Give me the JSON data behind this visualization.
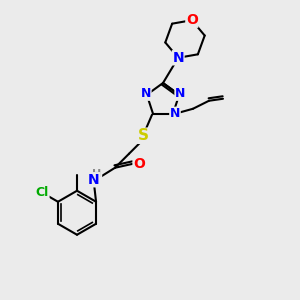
{
  "bg_color": "#ebebeb",
  "atom_colors": {
    "N": "#0000FF",
    "O": "#FF0000",
    "S": "#CCCC00",
    "Cl": "#00AA00",
    "C": "#000000",
    "H": "#888888"
  },
  "bond_color": "#000000",
  "font_size": 9,
  "fig_size": [
    3.0,
    3.0
  ],
  "dpi": 100
}
